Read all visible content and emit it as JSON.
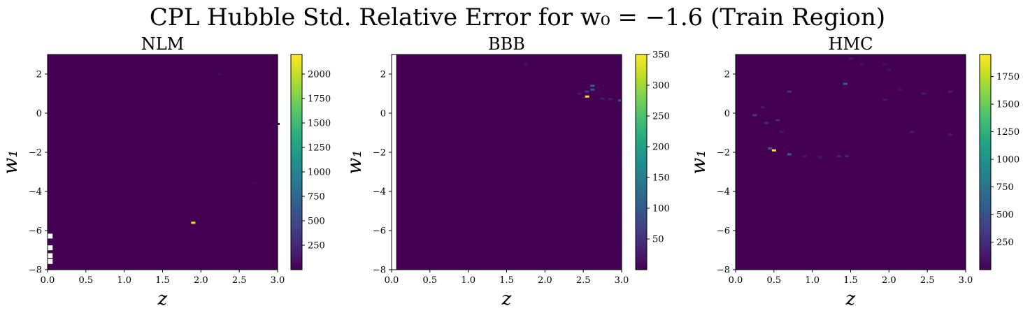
{
  "figure": {
    "suptitle": "CPL Hubble Std. Relative Error for w₀ = −1.6 (Train Region)"
  },
  "chart_data": [
    {
      "type": "heatmap",
      "title": "NLM",
      "xlabel": "z",
      "ylabel": "w₁",
      "xlim": [
        0.0,
        3.0
      ],
      "ylim": [
        -8,
        3
      ],
      "xticks": [
        "0.0",
        "0.5",
        "1.0",
        "1.5",
        "2.0",
        "2.5",
        "3.0"
      ],
      "yticks": [
        "−8",
        "−6",
        "−4",
        "−2",
        "0",
        "2"
      ],
      "colorbar": {
        "min": 0,
        "max": 2200,
        "ticks": [
          "250",
          "500",
          "750",
          "1000",
          "1250",
          "1500",
          "1750",
          "2000"
        ]
      },
      "background_value": 0,
      "hotspots": [
        {
          "x": 1.9,
          "y": -5.6,
          "value": 2200
        },
        {
          "x": 2.25,
          "y": 2.0,
          "value": 60
        },
        {
          "x": 2.7,
          "y": -3.55,
          "value": 40
        },
        {
          "x": 3.0,
          "y": -0.55,
          "value": 40
        }
      ],
      "missing": [
        {
          "x": 0.03,
          "y": -6.3
        },
        {
          "x": 0.03,
          "y": -6.9
        },
        {
          "x": 0.03,
          "y": -7.3
        },
        {
          "x": 0.03,
          "y": -7.6
        }
      ],
      "grid": false
    },
    {
      "type": "heatmap",
      "title": "BBB",
      "xlabel": "z",
      "ylabel": "w₁",
      "xlim": [
        0.0,
        3.0
      ],
      "ylim": [
        -8,
        3
      ],
      "xticks": [
        "0.0",
        "0.5",
        "1.0",
        "1.5",
        "2.0",
        "2.5",
        "3.0"
      ],
      "yticks": [
        "−8",
        "−6",
        "−4",
        "−2",
        "0",
        "2"
      ],
      "colorbar": {
        "min": 0,
        "max": 350,
        "ticks": [
          "50",
          "100",
          "150",
          "200",
          "250",
          "300",
          "350"
        ]
      },
      "background_value": 0,
      "hotspots": [
        {
          "x": 2.55,
          "y": 0.85,
          "value": 350
        },
        {
          "x": 2.62,
          "y": 1.4,
          "value": 110
        },
        {
          "x": 2.62,
          "y": 1.2,
          "value": 90
        },
        {
          "x": 2.55,
          "y": 1.1,
          "value": 60
        },
        {
          "x": 2.98,
          "y": 0.65,
          "value": 90
        },
        {
          "x": 2.75,
          "y": 0.75,
          "value": 30
        },
        {
          "x": 2.85,
          "y": 0.72,
          "value": 30
        },
        {
          "x": 2.45,
          "y": 1.0,
          "value": 25
        },
        {
          "x": 1.75,
          "y": 2.5,
          "value": 20
        }
      ],
      "missing_column": {
        "x": 0.03
      },
      "grid": false
    },
    {
      "type": "heatmap",
      "title": "HMC",
      "xlabel": "z",
      "ylabel": "w₁",
      "xlim": [
        0.0,
        3.0
      ],
      "ylim": [
        -8,
        3
      ],
      "xticks": [
        "0.0",
        "0.5",
        "1.0",
        "1.5",
        "2.0",
        "2.5",
        "3.0"
      ],
      "yticks": [
        "−8",
        "−6",
        "−4",
        "−2",
        "0",
        "2"
      ],
      "colorbar": {
        "min": 0,
        "max": 1950,
        "ticks": [
          "250",
          "500",
          "750",
          "1000",
          "1250",
          "1500",
          "1750"
        ]
      },
      "background_value": 0,
      "hotspots": [
        {
          "x": 0.5,
          "y": -1.9,
          "value": 1950
        },
        {
          "x": 0.45,
          "y": -1.8,
          "value": 600
        },
        {
          "x": 0.7,
          "y": -2.1,
          "value": 600
        },
        {
          "x": 1.43,
          "y": 1.5,
          "value": 600
        },
        {
          "x": 0.25,
          "y": -0.1,
          "value": 350
        },
        {
          "x": 0.7,
          "y": 1.1,
          "value": 300
        },
        {
          "x": 0.55,
          "y": -0.35,
          "value": 250
        },
        {
          "x": 0.4,
          "y": -0.5,
          "value": 200
        },
        {
          "x": 1.35,
          "y": -2.2,
          "value": 180
        },
        {
          "x": 1.45,
          "y": -2.2,
          "value": 200
        },
        {
          "x": 1.1,
          "y": -2.25,
          "value": 120
        },
        {
          "x": 0.9,
          "y": -2.2,
          "value": 120
        },
        {
          "x": 2.45,
          "y": 1.0,
          "value": 150
        },
        {
          "x": 2.3,
          "y": -0.95,
          "value": 150
        },
        {
          "x": 2.8,
          "y": -1.1,
          "value": 150
        },
        {
          "x": 2.8,
          "y": 1.1,
          "value": 150
        },
        {
          "x": 1.95,
          "y": 0.7,
          "value": 120
        },
        {
          "x": 1.5,
          "y": 2.8,
          "value": 120
        },
        {
          "x": 1.65,
          "y": 2.5,
          "value": 100
        },
        {
          "x": 2.0,
          "y": 2.2,
          "value": 100
        },
        {
          "x": 0.35,
          "y": 0.3,
          "value": 120
        },
        {
          "x": 0.6,
          "y": -0.95,
          "value": 120
        },
        {
          "x": 1.95,
          "y": 2.5,
          "value": 80
        },
        {
          "x": 2.15,
          "y": 1.2,
          "value": 80
        }
      ],
      "grid": false
    }
  ]
}
